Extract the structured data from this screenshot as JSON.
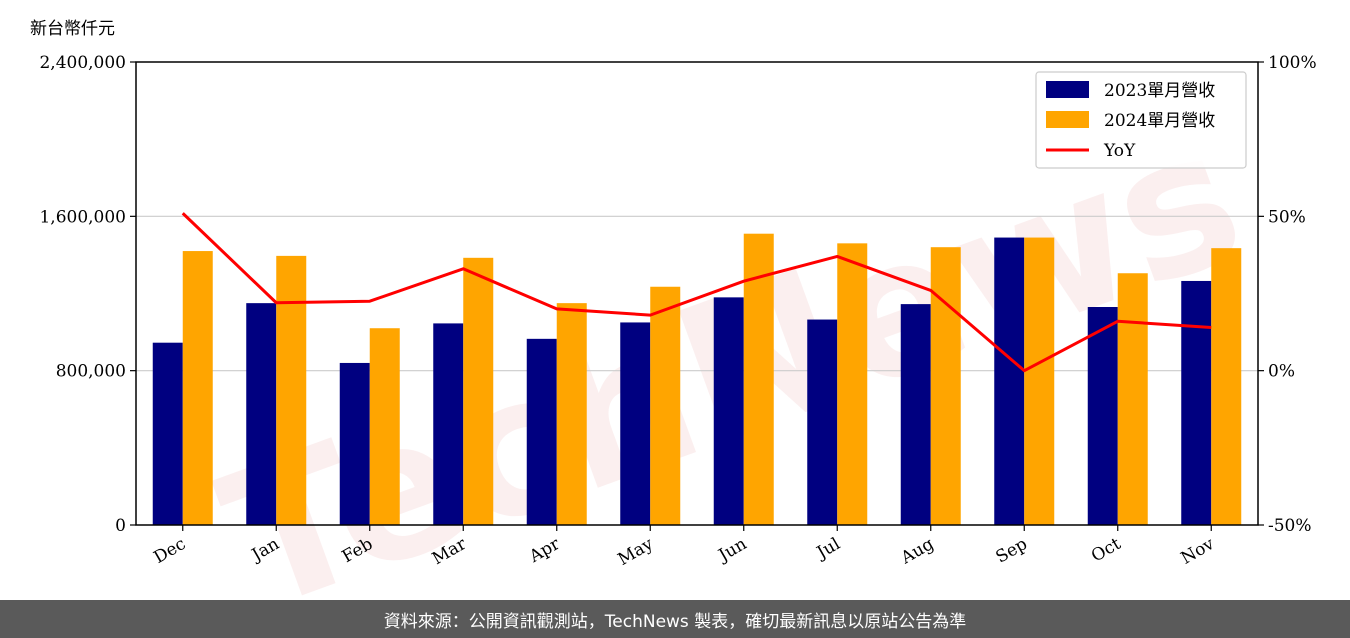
{
  "watermark": "TechNews",
  "footer": {
    "text": "資料來源：公開資訊觀測站，TechNews 製表，確切最新訊息以原站公告為準"
  },
  "chart_data": {
    "type": "bar",
    "unit_label": "新台幣仟元",
    "categories": [
      "Dec",
      "Jan",
      "Feb",
      "Mar",
      "Apr",
      "May",
      "Jun",
      "Jul",
      "Aug",
      "Sep",
      "Oct",
      "Nov"
    ],
    "series": [
      {
        "name": "2023單月營收",
        "type": "bar",
        "color": "#000080",
        "values": [
          945000,
          1150000,
          840000,
          1045000,
          965000,
          1050000,
          1180000,
          1065000,
          1145000,
          1490000,
          1130000,
          1265000
        ]
      },
      {
        "name": "2024單月營收",
        "type": "bar",
        "color": "#FFA500",
        "values": [
          1420000,
          1395000,
          1020000,
          1385000,
          1150000,
          1235000,
          1510000,
          1460000,
          1440000,
          1490000,
          1305000,
          1435000
        ]
      },
      {
        "name": "YoY",
        "type": "line",
        "axis": "right",
        "color": "#FF0000",
        "unit": "%",
        "values": [
          51,
          22,
          22.5,
          33,
          20,
          18,
          29,
          37,
          26,
          0,
          16,
          14
        ]
      }
    ],
    "y_left": {
      "min": 0,
      "max": 2400000,
      "ticks": [
        0,
        800000,
        1600000,
        2400000
      ],
      "tick_labels": [
        "0",
        "800,000",
        "1,600,000",
        "2,400,000"
      ]
    },
    "y_right": {
      "min": -50,
      "max": 100,
      "ticks": [
        -50,
        0,
        50,
        100
      ],
      "tick_labels": [
        "-50%",
        "0%",
        "50%",
        "100%"
      ]
    },
    "grid": "horizontal",
    "legend_position": "top-right"
  }
}
